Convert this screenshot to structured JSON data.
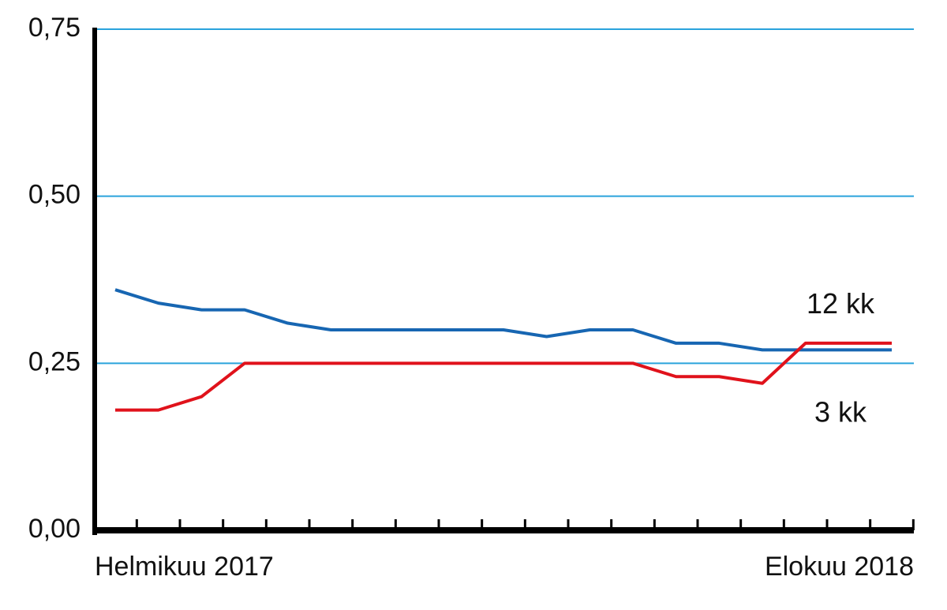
{
  "chart_data": {
    "type": "line",
    "categories": [
      "Helmikuu 2017",
      null,
      null,
      null,
      null,
      null,
      null,
      null,
      null,
      null,
      null,
      null,
      null,
      null,
      null,
      null,
      null,
      null,
      "Elokuu 2018"
    ],
    "series": [
      {
        "name": "12 kk",
        "color": "#1766b2",
        "values": [
          0.36,
          0.34,
          0.33,
          0.33,
          0.31,
          0.3,
          0.3,
          0.3,
          0.3,
          0.3,
          0.29,
          0.3,
          0.3,
          0.28,
          0.28,
          0.27,
          0.27,
          0.27,
          0.27
        ]
      },
      {
        "name": "3 kk",
        "color": "#e0121b",
        "values": [
          0.18,
          0.18,
          0.2,
          0.25,
          0.25,
          0.25,
          0.25,
          0.25,
          0.25,
          0.25,
          0.25,
          0.25,
          0.25,
          0.23,
          0.23,
          0.22,
          0.28,
          0.28,
          0.28
        ]
      }
    ],
    "ylim": [
      0,
      0.75
    ],
    "yticks": [
      {
        "value": 0,
        "label": "0,00"
      },
      {
        "value": 0.25,
        "label": "0,25"
      },
      {
        "value": 0.5,
        "label": "0,50"
      },
      {
        "value": 0.75,
        "label": "0,75"
      }
    ],
    "grid": true,
    "grid_color": "#2aa3dc"
  }
}
